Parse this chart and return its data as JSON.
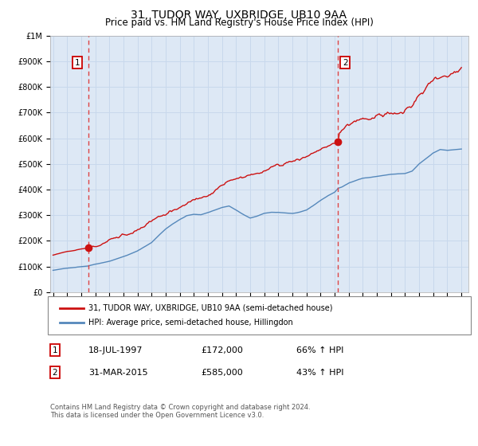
{
  "title": "31, TUDOR WAY, UXBRIDGE, UB10 9AA",
  "subtitle": "Price paid vs. HM Land Registry's House Price Index (HPI)",
  "title_fontsize": 10,
  "subtitle_fontsize": 8.5,
  "background_color": "#ffffff",
  "plot_bg_color": "#dde8f5",
  "grid_color": "#c8d8ec",
  "ylim": [
    0,
    1000000
  ],
  "yticks": [
    0,
    100000,
    200000,
    300000,
    400000,
    500000,
    600000,
    700000,
    800000,
    900000,
    1000000
  ],
  "ytick_labels": [
    "£0",
    "£100K",
    "£200K",
    "£300K",
    "£400K",
    "£500K",
    "£600K",
    "£700K",
    "£800K",
    "£900K",
    "£1M"
  ],
  "sale1_year": 1997.54,
  "sale1_price": 172000,
  "sale1_label": "18-JUL-1997",
  "sale1_hpi_pct": "66% ↑ HPI",
  "sale2_year": 2015.25,
  "sale2_price": 585000,
  "sale2_label": "31-MAR-2015",
  "sale2_hpi_pct": "43% ↑ HPI",
  "legend_line1": "31, TUDOR WAY, UXBRIDGE, UB10 9AA (semi-detached house)",
  "legend_line2": "HPI: Average price, semi-detached house, Hillingdon",
  "footer": "Contains HM Land Registry data © Crown copyright and database right 2024.\nThis data is licensed under the Open Government Licence v3.0.",
  "property_line_color": "#cc1111",
  "hpi_line_color": "#5588bb",
  "vline_color": "#dd4444",
  "marker_color": "#cc1111",
  "marker_box_color": "#cc0000",
  "xlim_left": 1994.8,
  "xlim_right": 2024.5
}
